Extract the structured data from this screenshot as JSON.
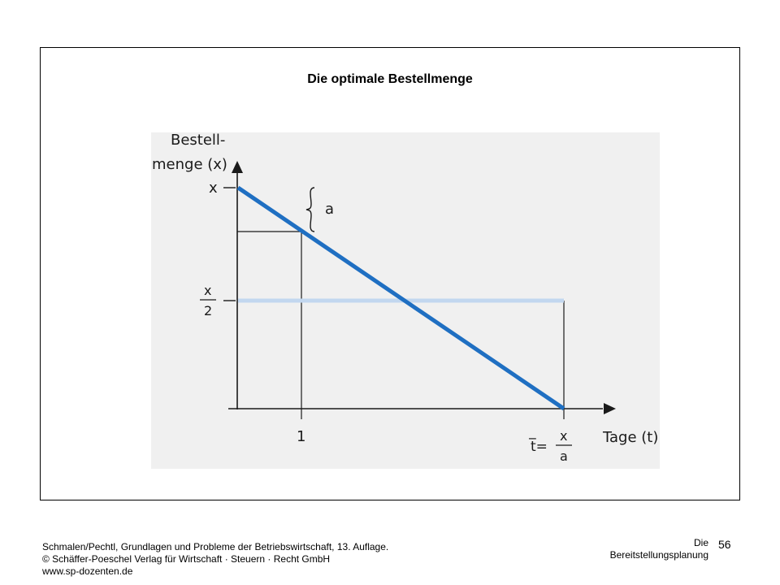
{
  "slide": {
    "title": "Die optimale Bestellmenge"
  },
  "figure": {
    "y_axis_label_line1": "Bestell-",
    "y_axis_label_line2": "menge (x)",
    "x_axis_label": "Tage (t)",
    "y_tick_x": "x",
    "y_tick_half_numerator": "x",
    "y_tick_half_denominator": "2",
    "brace_label": "a",
    "x_tick_one": "1",
    "x_tick_t_label": "t̅=",
    "x_tick_t_numerator": "x",
    "x_tick_t_denominator": "a",
    "colors": {
      "stock_line": "#1f6fc2",
      "average_line": "#c2d7ef",
      "background": "#f0f0f0",
      "axis": "#1a1a1a"
    }
  },
  "footer": {
    "source_line1": "Schmalen/Pechtl, Grundlagen und Probleme der Betriebswirtschaft, 13. Auflage.",
    "source_line2": "© Schäffer-Poeschel Verlag für Wirtschaft · Steuern · Recht GmbH",
    "source_line3": "www.sp-dozenten.de",
    "chapter_line1": "Die",
    "chapter_line2": "Bereitstellungsplanung",
    "page_number": "56"
  }
}
